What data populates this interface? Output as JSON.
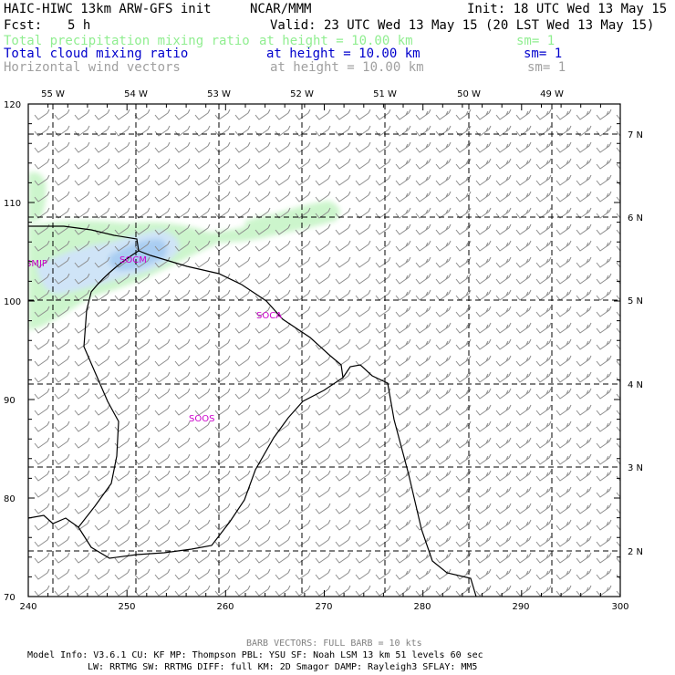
{
  "header": {
    "model": "HAIC-HIWC 13km ARW-GFS init",
    "org": "NCAR/MMM",
    "init": "Init: 18 UTC Wed 13 May 15",
    "fcst_label": "Fcst:",
    "fcst_value": "5 h",
    "valid": "Valid: 23 UTC Wed 13 May 15 (20 LST Wed 13 May 15)",
    "fields": [
      {
        "name": "Total precipitation mixing ratio",
        "height": "at height = 10.00 km",
        "sm": "sm= 1",
        "color": "#90ee90"
      },
      {
        "name": "Total cloud mixing ratio",
        "height": "at height = 10.00 km",
        "sm": "sm= 1",
        "color": "#0000cc"
      },
      {
        "name": "Horizontal wind vectors",
        "height": "at height = 10.00 km",
        "sm": "sm= 1",
        "color": "#a0a0a0"
      }
    ]
  },
  "axes": {
    "x_ticks": [
      "240",
      "250",
      "260",
      "270",
      "280",
      "290",
      "300"
    ],
    "y_ticks": [
      "70",
      "80",
      "90",
      "100",
      "110",
      "120"
    ],
    "lon_labels": [
      "55 W",
      "54 W",
      "53 W",
      "52 W",
      "51 W",
      "50 W",
      "49 W"
    ],
    "lat_labels": [
      "7 N",
      "6 N",
      "5 N",
      "4 N",
      "3 N",
      "2 N"
    ]
  },
  "stations": [
    {
      "id": "SMJP"
    },
    {
      "id": "SOCM"
    },
    {
      "id": "SOCA"
    },
    {
      "id": "SOOS"
    }
  ],
  "footer": {
    "barb": "BARB VECTORS:  FULL BARB = 10 kts",
    "line1": "Model Info: V3.6.1    CU: KF      MP: Thompson    PBL: YSU     SF: Noah LSM     13 km   51 levels   60 sec",
    "line2": "LW: RRTMG    SW: RRTMG  DIFF: full    KM: 2D Smagor DAMP: Rayleigh3  SFLAY: MM5"
  },
  "colors": {
    "precip": "#ccf5cc",
    "cloud_light": "#cfe4f7",
    "cloud_mid": "#a9cdf2",
    "barb": "#8c8c8c",
    "station": "#cc00cc"
  }
}
